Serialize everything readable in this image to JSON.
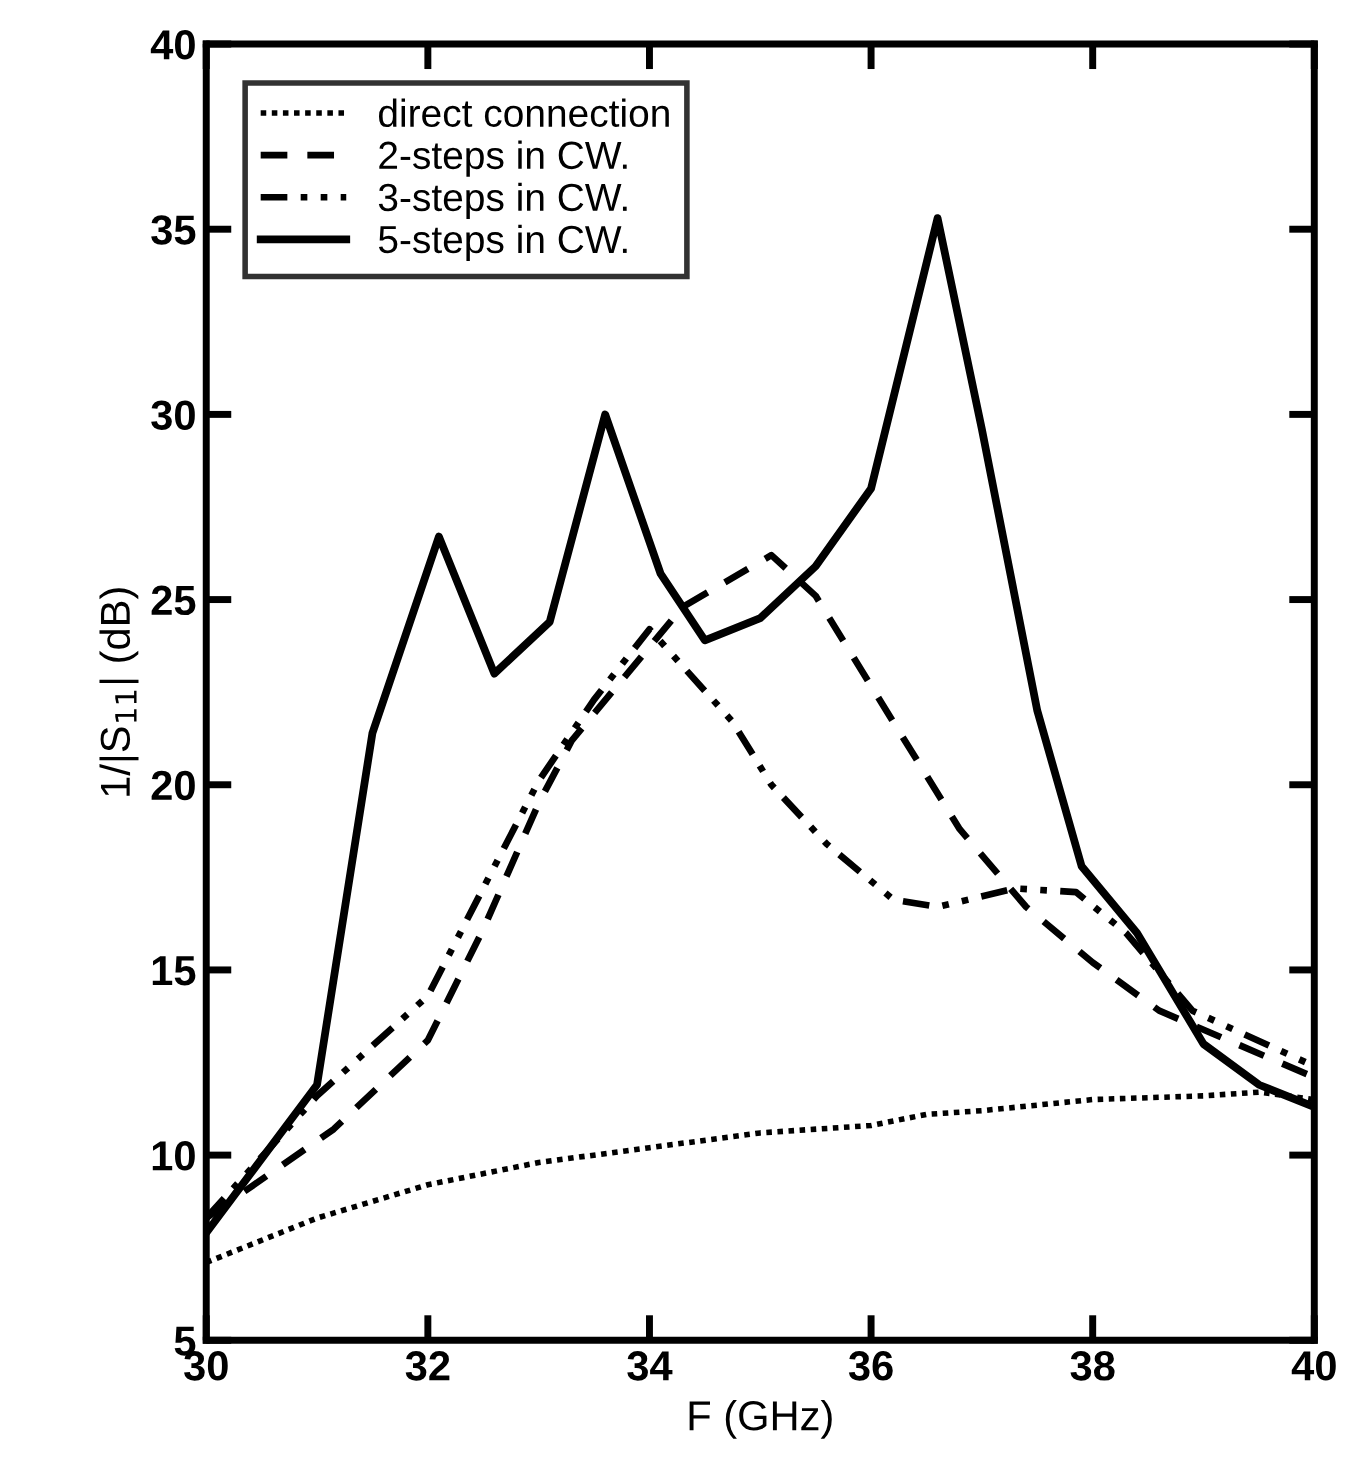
{
  "chart_data": {
    "type": "line",
    "xlabel": "F (GHz)",
    "ylabel": "1/|S$_{11}$| (dB)",
    "xlim": [
      30,
      40
    ],
    "ylim": [
      5,
      40
    ],
    "xticks": [
      30,
      32,
      34,
      36,
      38,
      40
    ],
    "yticks": [
      5,
      10,
      15,
      20,
      25,
      30,
      35,
      40
    ],
    "grid": false,
    "legend": "top left",
    "marker": "none",
    "series": [
      {
        "name": "direct connection",
        "color": "#000000",
        "line_style": "dotted",
        "x": [
          30,
          31,
          32,
          33,
          34,
          35,
          36,
          36.5,
          37,
          38,
          39,
          39.5,
          40
        ],
        "values": [
          7.1,
          8.3,
          9.2,
          9.8,
          10.2,
          10.6,
          10.8,
          11.1,
          11.2,
          11.5,
          11.6,
          11.7,
          11.5
        ]
      },
      {
        "name": "2-steps in CW.",
        "color": "#000000",
        "line_style": "dashed",
        "x": [
          30,
          31.15,
          32,
          32.5,
          33,
          33.3,
          34.3,
          35.1,
          35.5,
          36.2,
          36.8,
          37.4,
          38,
          38.6,
          40
        ],
        "values": [
          8.3,
          10.7,
          13.1,
          16.1,
          19.5,
          21.2,
          24.8,
          26.2,
          25.1,
          21.7,
          18.8,
          16.7,
          15.2,
          13.9,
          12.1
        ]
      },
      {
        "name": "3-steps in CW.",
        "color": "#000000",
        "line_style": "dashdot",
        "x": [
          30,
          31,
          32,
          32.55,
          33,
          33.5,
          34,
          34.75,
          35.1,
          35.6,
          36.2,
          36.6,
          37.3,
          37.85,
          38.3,
          38.9,
          40
        ],
        "values": [
          8.3,
          11.6,
          14.3,
          17.5,
          20.1,
          22.3,
          24.2,
          21.7,
          20.0,
          18.4,
          16.9,
          16.7,
          17.2,
          17.1,
          16.0,
          13.9,
          12.4
        ]
      },
      {
        "name": "5-steps in CW.",
        "color": "#000000",
        "line_style": "solid",
        "x": [
          30,
          31,
          31.5,
          32.1,
          32.6,
          33.1,
          33.6,
          34.1,
          34.5,
          35,
          35.5,
          36,
          36.6,
          37,
          37.5,
          37.9,
          38.4,
          39,
          39.5,
          40
        ],
        "values": [
          7.9,
          11.9,
          21.4,
          26.7,
          23.0,
          24.4,
          30.0,
          25.7,
          23.9,
          24.5,
          25.9,
          28.0,
          35.3,
          29.6,
          22.0,
          17.8,
          16.0,
          13.0,
          11.9,
          11.3
        ]
      }
    ]
  }
}
